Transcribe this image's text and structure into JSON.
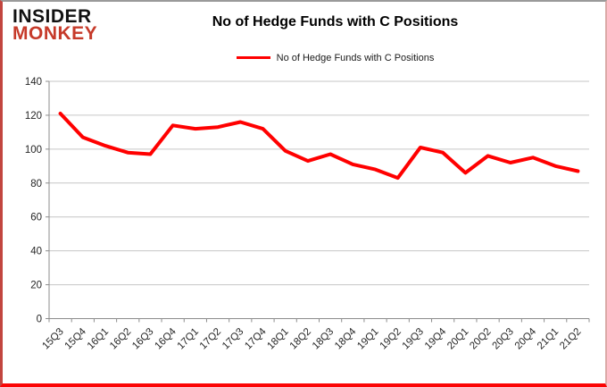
{
  "header": {
    "logo_line1": "INSIDER",
    "logo_line2": "MONKEY",
    "title": "No of Hedge Funds with C Positions"
  },
  "legend": {
    "label": "No of Hedge Funds with C Positions"
  },
  "chart_data": {
    "type": "line",
    "title": "No of Hedge Funds with C Positions",
    "xlabel": "",
    "ylabel": "",
    "categories": [
      "15Q3",
      "15Q4",
      "16Q1",
      "16Q2",
      "16Q3",
      "16Q4",
      "17Q1",
      "17Q2",
      "17Q3",
      "17Q4",
      "18Q1",
      "18Q2",
      "18Q3",
      "18Q4",
      "19Q1",
      "19Q2",
      "19Q3",
      "19Q4",
      "20Q1",
      "20Q2",
      "20Q3",
      "20Q4",
      "21Q1",
      "21Q2"
    ],
    "series": [
      {
        "name": "No of Hedge Funds with C Positions",
        "color": "#ff0000",
        "values": [
          121,
          107,
          102,
          98,
          97,
          114,
          112,
          113,
          116,
          112,
          99,
          93,
          97,
          91,
          88,
          83,
          101,
          98,
          86,
          96,
          92,
          95,
          90,
          87
        ]
      }
    ],
    "ylim": [
      0,
      140
    ],
    "ytick_step": 20,
    "grid": true,
    "legend_position": "top-center"
  },
  "colors": {
    "line": "#ff0000",
    "grid": "#c6c6c6",
    "axis": "#8c8c8c",
    "tick_text": "#262626",
    "logo_accent": "#c63a2a",
    "frame_red": "#fb0505"
  }
}
